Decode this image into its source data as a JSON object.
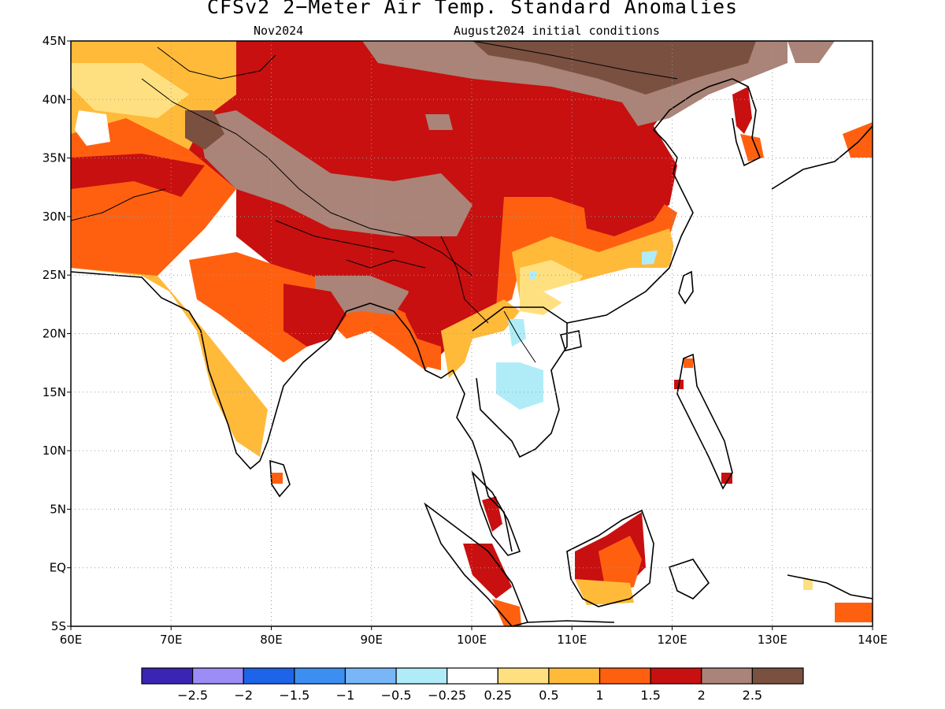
{
  "title": "CFSv2 2−Meter Air Temp. Standard Anomalies",
  "valid_month": "Nov2024",
  "init_conditions": "August2024 initial conditions",
  "map": {
    "lon_ticks": [
      "60E",
      "70E",
      "80E",
      "90E",
      "100E",
      "110E",
      "120E",
      "130E",
      "140E"
    ],
    "lat_ticks": [
      "45N",
      "40N",
      "35N",
      "30N",
      "25N",
      "20N",
      "15N",
      "10N",
      "5N",
      "EQ",
      "5S"
    ],
    "lon_range": [
      60,
      140
    ],
    "lat_range": [
      -5,
      45
    ],
    "grid": "dotted"
  },
  "colorbar": {
    "colors": [
      "#3a24b4",
      "#9c8cf5",
      "#1e64e8",
      "#3c8ff0",
      "#78b6f8",
      "#b0ecf8",
      "#ffffff",
      "#ffe080",
      "#ffba3a",
      "#ff6010",
      "#c81010",
      "#aa8478",
      "#7a5040"
    ],
    "labels": [
      "−2.5",
      "−2",
      "−1.5",
      "−1",
      "−0.5",
      "−0.25",
      "0.25",
      "0.5",
      "1",
      "1.5",
      "2",
      "2.5"
    ]
  },
  "colors": {
    "dark_brown": "#7a5040",
    "brown": "#aa8478",
    "dark_red": "#c81010",
    "red_orange": "#ff6010",
    "orange": "#ffba3a",
    "yellow": "#ffe080",
    "light_cyan": "#b0ecf8",
    "light_blue": "#78b6f8"
  }
}
